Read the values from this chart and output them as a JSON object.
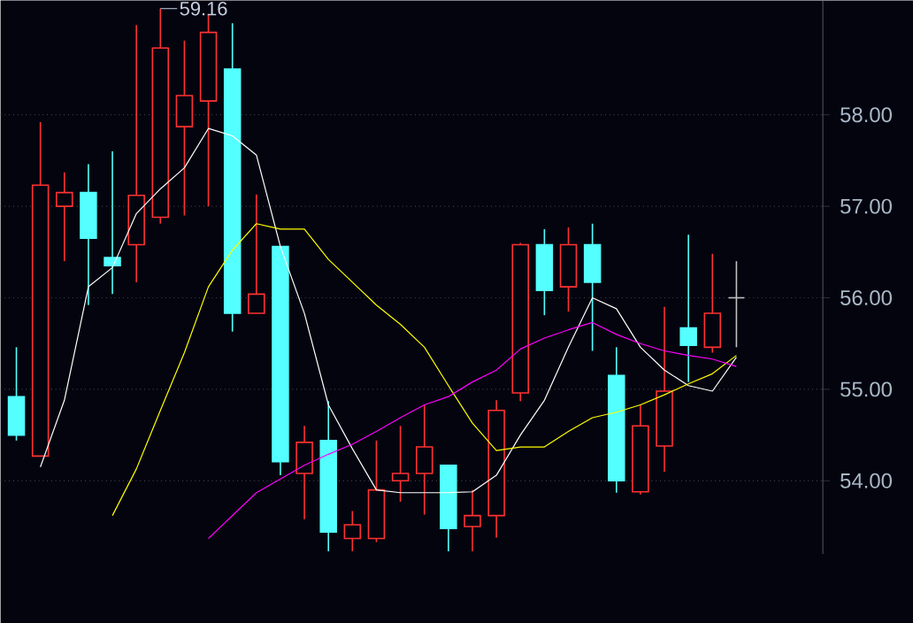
{
  "chart_data": {
    "type": "candlestick",
    "categories": [
      null,
      null,
      null,
      null,
      null,
      null,
      null,
      null,
      null,
      null,
      null,
      null,
      null,
      null,
      null,
      null,
      null,
      null,
      null,
      null,
      null,
      null,
      null,
      null,
      null,
      null,
      null,
      null,
      null,
      null,
      null
    ],
    "ohlc": [
      [
        54.92,
        55.46,
        54.44,
        54.5
      ],
      [
        54.27,
        57.92,
        54.27,
        57.23
      ],
      [
        57.0,
        57.37,
        56.4,
        57.15
      ],
      [
        57.15,
        57.46,
        55.92,
        56.65
      ],
      [
        56.44,
        57.6,
        56.04,
        56.35
      ],
      [
        56.58,
        58.98,
        56.17,
        57.12
      ],
      [
        56.88,
        59.16,
        56.81,
        58.73
      ],
      [
        57.87,
        58.81,
        56.9,
        58.21
      ],
      [
        58.15,
        59.1,
        57.0,
        58.9
      ],
      [
        58.5,
        59.0,
        55.63,
        55.83
      ],
      [
        55.83,
        57.13,
        55.83,
        56.04
      ],
      [
        56.56,
        56.56,
        54.06,
        54.21
      ],
      [
        54.08,
        54.6,
        53.58,
        54.42
      ],
      [
        54.44,
        54.87,
        53.23,
        53.44
      ],
      [
        53.37,
        53.67,
        53.23,
        53.52
      ],
      [
        53.37,
        54.44,
        53.33,
        53.9
      ],
      [
        54.0,
        54.6,
        53.77,
        54.08
      ],
      [
        54.08,
        54.83,
        53.63,
        54.37
      ],
      [
        54.17,
        54.17,
        53.23,
        53.48
      ],
      [
        53.5,
        53.9,
        53.23,
        53.62
      ],
      [
        53.62,
        54.88,
        53.38,
        54.77
      ],
      [
        54.96,
        56.6,
        54.87,
        56.58
      ],
      [
        56.58,
        56.75,
        55.81,
        56.08
      ],
      [
        56.12,
        56.77,
        55.85,
        56.58
      ],
      [
        56.58,
        56.81,
        55.42,
        56.17
      ],
      [
        55.15,
        55.46,
        53.87,
        54.0
      ],
      [
        53.88,
        54.83,
        53.85,
        54.6
      ],
      [
        54.38,
        55.9,
        54.1,
        54.98
      ],
      [
        55.67,
        56.69,
        55.08,
        55.48
      ],
      [
        55.46,
        56.48,
        55.4,
        55.83
      ],
      [
        56.0,
        56.4,
        55.46,
        56.0
      ]
    ],
    "colors": [
      "#54ffff",
      "#ff3232",
      "#ff3232",
      "#54ffff",
      "#54ffff",
      "#ff3232",
      "#ff3232",
      "#ff3232",
      "#ff3232",
      "#54ffff",
      "#ff3232",
      "#54ffff",
      "#ff3232",
      "#54ffff",
      "#ff3232",
      "#ff3232",
      "#ff3232",
      "#ff3232",
      "#54ffff",
      "#ff3232",
      "#ff3232",
      "#ff3232",
      "#54ffff",
      "#ff3232",
      "#54ffff",
      "#54ffff",
      "#ff3232",
      "#ff3232",
      "#54ffff",
      "#ff3232",
      "#c0c0c0"
    ],
    "series": [
      {
        "type": "line",
        "color": "#ffffff",
        "values": [
          null,
          54.15,
          54.88,
          56.12,
          56.33,
          56.92,
          57.19,
          57.42,
          57.85,
          57.77,
          57.56,
          56.56,
          55.83,
          54.83,
          54.35,
          53.9,
          53.87,
          53.87,
          53.87,
          53.88,
          54.06,
          54.5,
          54.88,
          55.46,
          56.0,
          55.88,
          55.46,
          55.21,
          55.04,
          54.98,
          55.35
        ]
      },
      {
        "type": "line",
        "color": "#ffff00",
        "values": [
          null,
          null,
          null,
          null,
          53.62,
          54.13,
          54.77,
          55.4,
          56.12,
          56.52,
          56.81,
          56.75,
          56.75,
          56.42,
          56.17,
          55.92,
          55.71,
          55.46,
          55.04,
          54.63,
          54.33,
          54.37,
          54.37,
          54.54,
          54.69,
          54.75,
          54.83,
          54.94,
          55.06,
          55.17,
          55.37
        ]
      },
      {
        "type": "line",
        "color": "#ff00ff",
        "values": [
          null,
          null,
          null,
          null,
          null,
          null,
          null,
          null,
          53.37,
          53.62,
          53.87,
          54.02,
          54.17,
          54.29,
          54.4,
          54.54,
          54.69,
          54.83,
          54.92,
          55.08,
          55.21,
          55.44,
          55.56,
          55.65,
          55.73,
          55.6,
          55.5,
          55.42,
          55.37,
          55.33,
          55.25
        ]
      }
    ],
    "ylim": [
      53.2,
      59.25
    ],
    "yticks": [
      {
        "value": 54,
        "label": "54.00"
      },
      {
        "value": 55,
        "label": "55.00"
      },
      {
        "value": 56,
        "label": "56.00"
      },
      {
        "value": 57,
        "label": "57.00"
      },
      {
        "value": 58,
        "label": "58.00"
      }
    ],
    "grid": "y",
    "annotations": [
      {
        "text": "59.16",
        "y": 59.16
      }
    ]
  }
}
